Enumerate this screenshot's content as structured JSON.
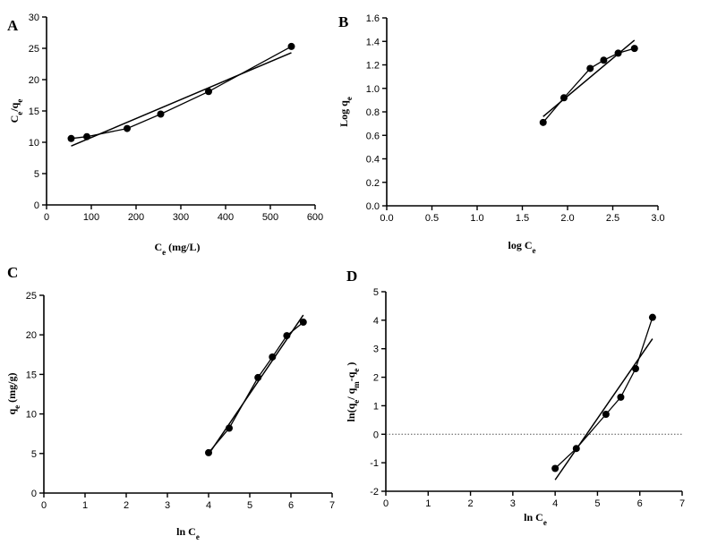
{
  "colors": {
    "ink": "#000000",
    "reference": "#555555"
  },
  "chart_data": [
    {
      "panel": "A",
      "type": "scatter",
      "title": "",
      "xlabel_main": "C",
      "xlabel_sub": "e",
      "xlabel_tail": " (mg/L)",
      "ylabel_main": "C",
      "ylabel_sub": "e",
      "ylabel_slash": "/q",
      "ylabel_sub2": "e",
      "xlim": [
        0,
        600
      ],
      "ylim": [
        0,
        30
      ],
      "xticks": [
        0,
        100,
        200,
        300,
        400,
        500,
        600
      ],
      "yticks": [
        0,
        5,
        10,
        15,
        20,
        25,
        30
      ],
      "tick_labels_x": [
        "0",
        "100",
        "200",
        "300",
        "400",
        "500",
        "600"
      ],
      "tick_labels_y": [
        "0",
        "5",
        "10",
        "15",
        "20",
        "25",
        "30"
      ],
      "points": {
        "x": [
          55,
          90,
          180,
          255,
          362,
          547
        ],
        "y": [
          10.6,
          10.9,
          12.2,
          14.5,
          18.1,
          25.3
        ]
      },
      "fit_line": {
        "x": [
          55,
          547
        ],
        "y": [
          9.4,
          24.3
        ]
      },
      "connect_points": true
    },
    {
      "panel": "B",
      "type": "scatter",
      "title": "",
      "xlabel_main": "log C",
      "xlabel_sub": "e",
      "ylabel_main": "Log q",
      "ylabel_sub": "e",
      "xlim": [
        0,
        3
      ],
      "ylim": [
        0,
        1.6
      ],
      "xticks": [
        0,
        0.5,
        1,
        1.5,
        2,
        2.5,
        3
      ],
      "yticks": [
        0,
        0.2,
        0.4,
        0.6,
        0.8,
        1,
        1.2,
        1.4,
        1.6
      ],
      "tick_labels_x": [
        "0.0",
        "0.5",
        "1.0",
        "1.5",
        "2.0",
        "2.5",
        "3.0"
      ],
      "tick_labels_y": [
        "0.0",
        "0.2",
        "0.4",
        "0.6",
        "0.8",
        "1.0",
        "1.2",
        "1.4",
        "1.6"
      ],
      "points": {
        "x": [
          1.73,
          1.96,
          2.25,
          2.4,
          2.56,
          2.74
        ],
        "y": [
          0.71,
          0.92,
          1.17,
          1.24,
          1.3,
          1.34
        ]
      },
      "fit_line": {
        "x": [
          1.73,
          2.74
        ],
        "y": [
          0.76,
          1.41
        ]
      },
      "connect_points": true
    },
    {
      "panel": "C",
      "type": "scatter",
      "title": "",
      "xlabel_main": "ln C",
      "xlabel_sub": "e",
      "ylabel_main": "q",
      "ylabel_sub": "e",
      "ylabel_tail": " (mg/g)",
      "xlim": [
        0,
        7
      ],
      "ylim": [
        0,
        25
      ],
      "xticks": [
        0,
        1,
        2,
        3,
        4,
        5,
        6,
        7
      ],
      "yticks": [
        0,
        5,
        10,
        15,
        20,
        25
      ],
      "tick_labels_x": [
        "0",
        "1",
        "2",
        "3",
        "4",
        "5",
        "6",
        "7"
      ],
      "tick_labels_y": [
        "0",
        "5",
        "10",
        "15",
        "20",
        "25"
      ],
      "points": {
        "x": [
          4.0,
          4.5,
          5.2,
          5.55,
          5.9,
          6.3
        ],
        "y": [
          5.1,
          8.2,
          14.6,
          17.2,
          19.9,
          21.6
        ]
      },
      "fit_line": {
        "x": [
          4.0,
          6.3
        ],
        "y": [
          4.9,
          22.5
        ]
      },
      "connect_points": true
    },
    {
      "panel": "D",
      "type": "scatter",
      "title": "",
      "xlabel_main": "ln C",
      "xlabel_sub": "e",
      "ylabel_main": "ln(q",
      "ylabel_sub": "e",
      "ylabel_mid": "/ q",
      "ylabel_sub2": "m",
      "ylabel_mid2": "-q",
      "ylabel_sub3": "e",
      "ylabel_tail": " )",
      "xlim": [
        0,
        7
      ],
      "ylim": [
        -2,
        5
      ],
      "xticks": [
        0,
        1,
        2,
        3,
        4,
        5,
        6,
        7
      ],
      "yticks": [
        -2,
        -1,
        0,
        1,
        2,
        3,
        4,
        5
      ],
      "tick_labels_x": [
        "0",
        "1",
        "2",
        "3",
        "4",
        "5",
        "6",
        "7"
      ],
      "tick_labels_y": [
        "-2",
        "-1",
        "0",
        "1",
        "2",
        "3",
        "4",
        "5"
      ],
      "points": {
        "x": [
          4.0,
          4.5,
          5.2,
          5.55,
          5.9,
          6.3
        ],
        "y": [
          -1.2,
          -0.5,
          0.7,
          1.3,
          2.3,
          4.1
        ]
      },
      "fit_line": {
        "x": [
          4.0,
          6.3
        ],
        "y": [
          -1.6,
          3.35
        ]
      },
      "reference_line": {
        "y": 0,
        "style": "dotted"
      },
      "connect_points": true
    }
  ]
}
